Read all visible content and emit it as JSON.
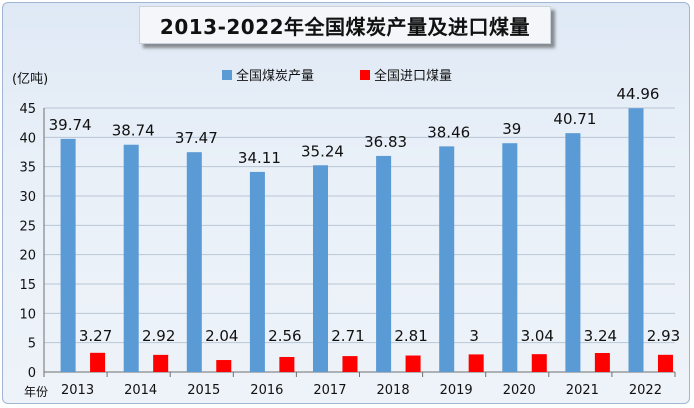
{
  "chart_data": {
    "type": "bar",
    "title": "2013-2022年全国煤炭产量及进口煤量",
    "ylabel": "(亿吨)",
    "xlabel": "年份",
    "ylim": [
      0,
      45
    ],
    "yticks": [
      0,
      5,
      10,
      15,
      20,
      25,
      30,
      35,
      40,
      45
    ],
    "grid": true,
    "legend_position": "top-center",
    "categories": [
      "2013",
      "2014",
      "2015",
      "2016",
      "2017",
      "2018",
      "2019",
      "2020",
      "2021",
      "2022"
    ],
    "series": [
      {
        "name": "全国煤炭产量",
        "color": "#5b9bd5",
        "values": [
          39.74,
          38.74,
          37.47,
          34.11,
          35.24,
          36.83,
          38.46,
          39,
          40.71,
          44.96
        ],
        "labels": [
          "39.74",
          "38.74",
          "37.47",
          "34.11",
          "35.24",
          "36.83",
          "38.46",
          "39",
          "40.71",
          "44.96"
        ]
      },
      {
        "name": "全国进口煤量",
        "color": "#ff0000",
        "values": [
          3.27,
          2.92,
          2.04,
          2.56,
          2.71,
          2.81,
          3,
          3.04,
          3.24,
          2.93
        ],
        "labels": [
          "3.27",
          "2.92",
          "2.04",
          "2.56",
          "2.71",
          "2.81",
          "3",
          "3.04",
          "3.24",
          "2.93"
        ]
      }
    ]
  }
}
